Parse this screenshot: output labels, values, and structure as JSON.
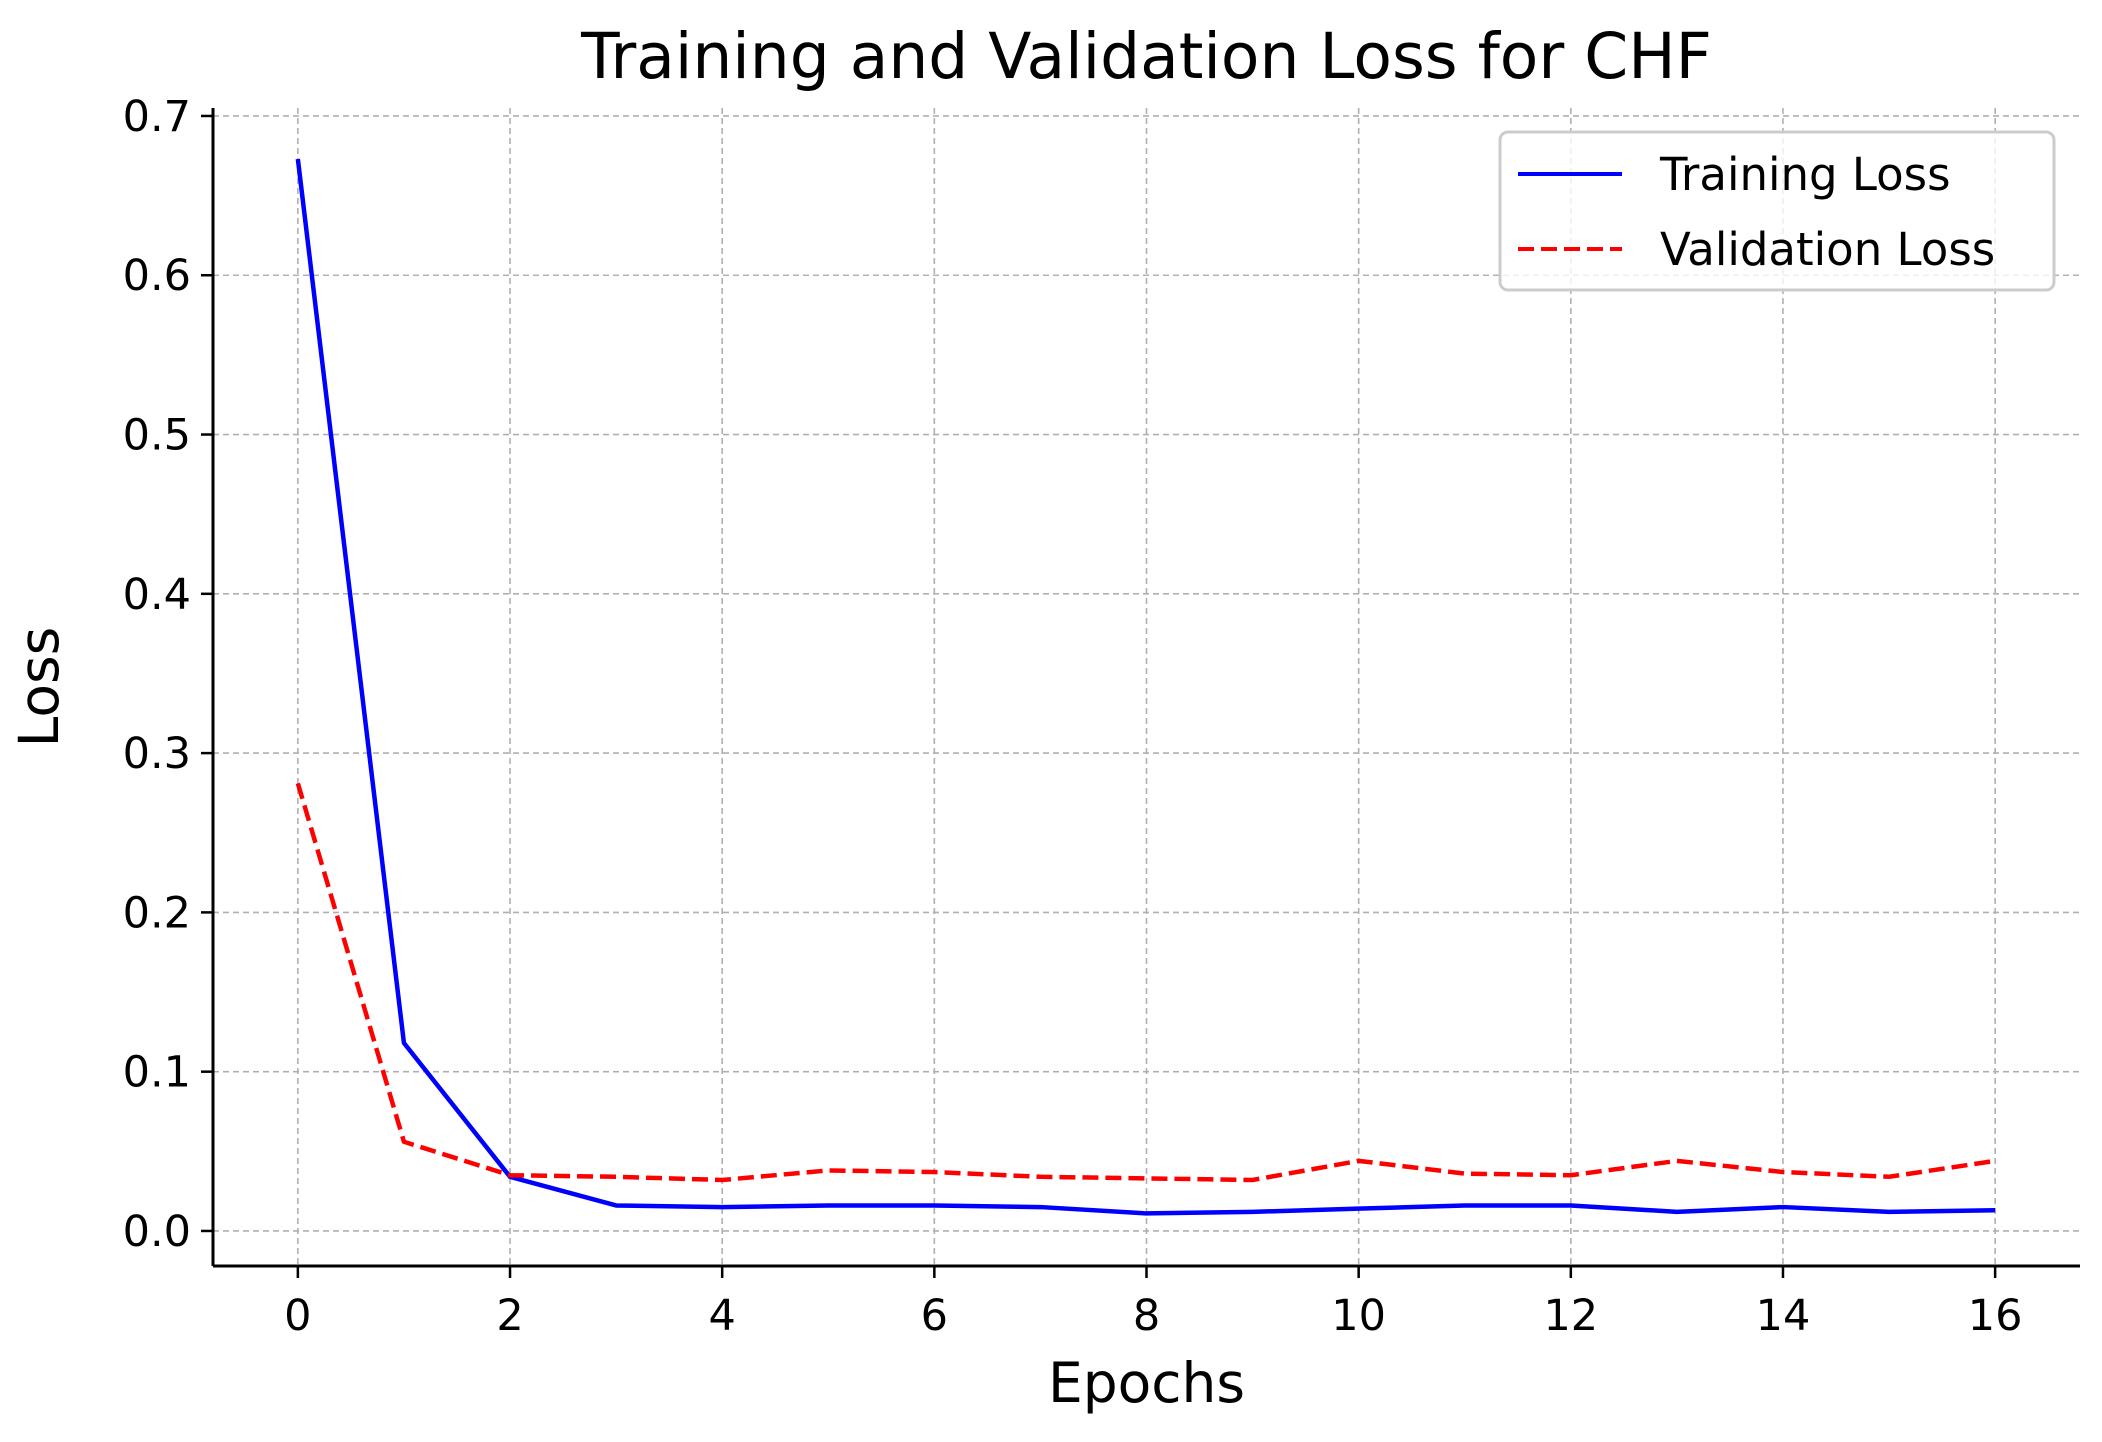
{
  "chart_data": {
    "type": "line",
    "title": "Training and Validation Loss for CHF",
    "xlabel": "Epochs",
    "ylabel": "Loss",
    "xlim": [
      -0.8,
      16.8
    ],
    "ylim": [
      -0.022,
      0.705
    ],
    "xticks": [
      0,
      2,
      4,
      6,
      8,
      10,
      12,
      14,
      16
    ],
    "yticks": [
      0.0,
      0.1,
      0.2,
      0.3,
      0.4,
      0.5,
      0.6,
      0.7
    ],
    "xtick_labels": [
      "0",
      "2",
      "4",
      "6",
      "8",
      "10",
      "12",
      "14",
      "16"
    ],
    "ytick_labels": [
      "0.0",
      "0.1",
      "0.2",
      "0.3",
      "0.4",
      "0.5",
      "0.6",
      "0.7"
    ],
    "grid": true,
    "legend_position": "top-right",
    "x": [
      0,
      1,
      2,
      3,
      4,
      5,
      6,
      7,
      8,
      9,
      10,
      11,
      12,
      13,
      14,
      15,
      16
    ],
    "series": [
      {
        "name": "Training Loss",
        "color": "#0000ff",
        "style": "solid",
        "values": [
          0.673,
          0.118,
          0.034,
          0.016,
          0.015,
          0.016,
          0.016,
          0.015,
          0.011,
          0.012,
          0.014,
          0.016,
          0.016,
          0.012,
          0.015,
          0.012,
          0.013
        ]
      },
      {
        "name": "Validation Loss",
        "color": "#ff0000",
        "style": "dashed",
        "values": [
          0.281,
          0.056,
          0.035,
          0.034,
          0.032,
          0.038,
          0.037,
          0.034,
          0.033,
          0.032,
          0.044,
          0.036,
          0.035,
          0.044,
          0.037,
          0.034,
          0.044
        ]
      }
    ]
  }
}
